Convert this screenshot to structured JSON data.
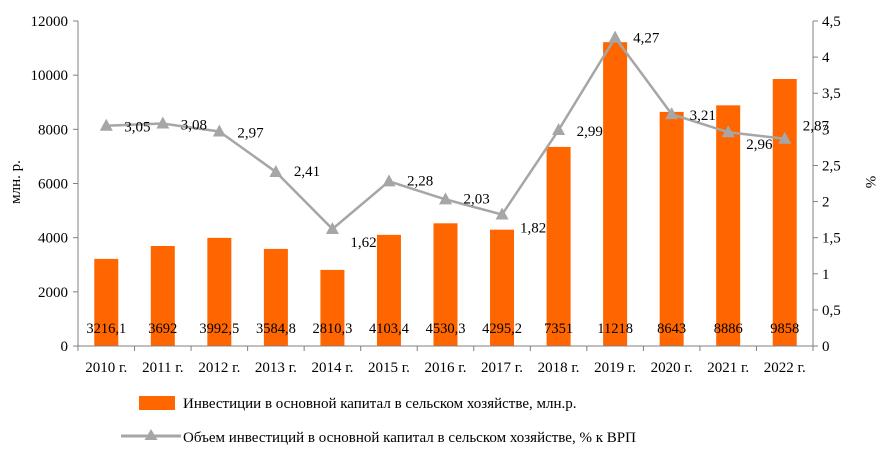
{
  "colors": {
    "bar": "#FF6600",
    "line": "#A6A6A6",
    "axis": "#808080"
  },
  "chart_data": {
    "type": "bar+line",
    "categories": [
      "2010 г.",
      "2011 г.",
      "2012 г.",
      "2013 г.",
      "2014 г.",
      "2015 г.",
      "2016 г.",
      "2017 г.",
      "2018 г.",
      "2019 г.",
      "2020 г.",
      "2021 г.",
      "2022 г."
    ],
    "ylabel": "млн. р.",
    "y2label": "%",
    "ylim": [
      0,
      12000
    ],
    "y2lim": [
      0,
      4.5
    ],
    "yticks": [
      "0",
      "2000",
      "4000",
      "6000",
      "8000",
      "10000",
      "12000"
    ],
    "y2ticks": [
      "0",
      "0,5",
      "1",
      "1,5",
      "2",
      "2,5",
      "3",
      "3,5",
      "4",
      "4,5"
    ],
    "grid": false,
    "legend_position": "bottom",
    "series": [
      {
        "name": "Инвестиции в основной капитал в сельском хозяйстве, млн.р.",
        "type": "bar",
        "axis": "left",
        "values": [
          3216.1,
          3692,
          3992.5,
          3584.8,
          2810.3,
          4103.4,
          4530.3,
          4295.2,
          7351,
          11218,
          8643,
          8886,
          9858
        ],
        "labels": [
          "3216,1",
          "3692",
          "3992,5",
          "3584,8",
          "2810,3",
          "4103,4",
          "4530,3",
          "4295,2",
          "7351",
          "11218",
          "8643",
          "8886",
          "9858"
        ]
      },
      {
        "name": "Объем инвестиций в основной капитал в сельском хозяйстве, % к ВРП",
        "type": "line",
        "axis": "right",
        "values": [
          3.05,
          3.08,
          2.97,
          2.41,
          1.62,
          2.28,
          2.03,
          1.82,
          2.99,
          4.27,
          3.21,
          2.96,
          2.87
        ],
        "labels": [
          "3,05",
          "3,08",
          "2,97",
          "2,41",
          "1,62",
          "2,28",
          "2,03",
          "1,82",
          "2,99",
          "4,27",
          "3,21",
          "2,96",
          "2,87"
        ]
      }
    ]
  }
}
